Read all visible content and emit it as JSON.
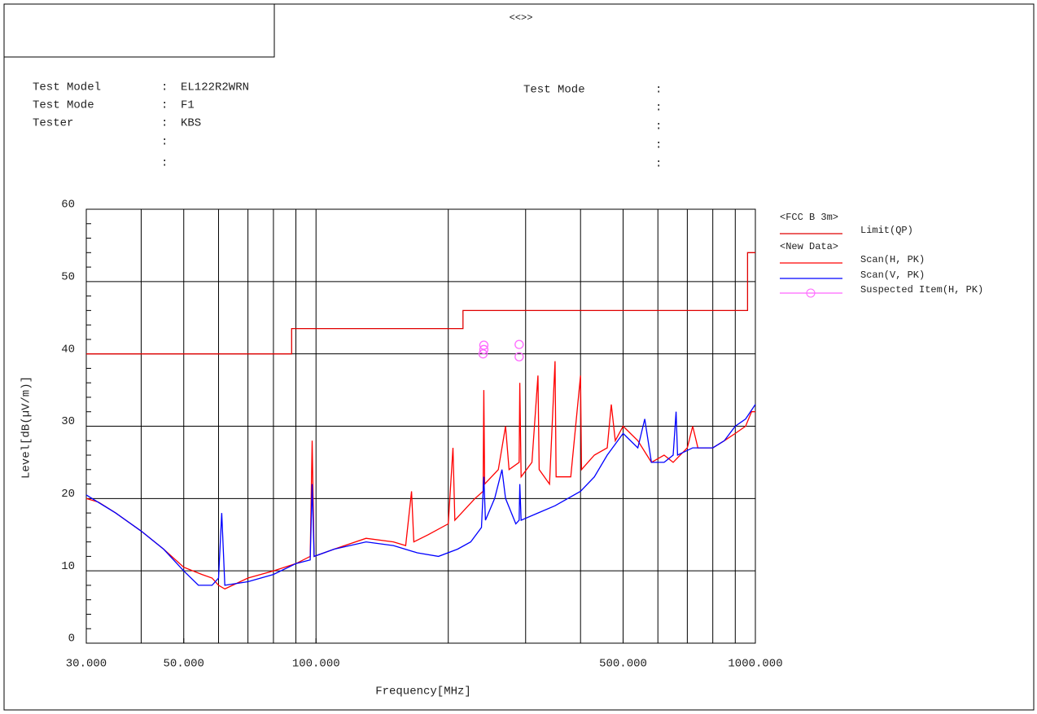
{
  "chart_data": {
    "type": "line",
    "title": "<<>>",
    "info_left": [
      {
        "label": "Test Model",
        "sep": ":",
        "value": "EL122R2WRN"
      },
      {
        "label": "Test Mode",
        "sep": ":",
        "value": "F1"
      },
      {
        "label": "Tester",
        "sep": ":",
        "value": "KBS"
      },
      {
        "sep": ":"
      },
      {
        "sep": ":"
      }
    ],
    "info_right": [
      {
        "label": "Test Mode",
        "sep": ":"
      },
      {
        "sep": ":"
      },
      {
        "sep": ":"
      },
      {
        "sep": ":"
      },
      {
        "sep": ":"
      }
    ],
    "x_label": "Frequency[MHz]",
    "y_label": "Level[dB(µV/m)]",
    "xscale": "log",
    "xlim": [
      30,
      1000
    ],
    "xticks": [
      {
        "value": 30,
        "label": "30.000"
      },
      {
        "value": 50,
        "label": "50.000"
      },
      {
        "value": 100,
        "label": "100.000"
      },
      {
        "value": 500,
        "label": "500.000"
      },
      {
        "value": 1000,
        "label": "1000.000"
      }
    ],
    "xgrid": [
      40,
      50,
      60,
      70,
      80,
      90,
      100,
      200,
      300,
      400,
      500,
      600,
      700,
      800,
      900
    ],
    "ylim": [
      0,
      60
    ],
    "yticks": [
      0,
      10,
      20,
      30,
      40,
      50,
      60
    ],
    "yminor": [
      2,
      4,
      6,
      8,
      12,
      14,
      16,
      18,
      22,
      24,
      26,
      28,
      32,
      34,
      36,
      38,
      42,
      44,
      46,
      48,
      52,
      54,
      56,
      58
    ],
    "grid": true,
    "legend_groups": [
      {
        "title": "<FCC B 3m>"
      },
      {
        "title": "<New Data>"
      }
    ],
    "series": [
      {
        "name": "Limit(QP)",
        "color": "#e00000",
        "style": "line",
        "x": [
          30,
          88,
          88,
          216,
          216,
          960,
          960,
          1000
        ],
        "values": [
          40,
          40,
          43.5,
          43.5,
          46,
          46,
          54,
          54
        ]
      },
      {
        "name": "Scan(H, PK)",
        "color": "#ff0000",
        "style": "line",
        "x": [
          30,
          32,
          35,
          40,
          45,
          50,
          55,
          58,
          60,
          62,
          70,
          80,
          90,
          97,
          98,
          99,
          110,
          130,
          150,
          160,
          165,
          167,
          180,
          200,
          205,
          207,
          230,
          240,
          241,
          242,
          260,
          270,
          275,
          290,
          291,
          293,
          310,
          320,
          322,
          340,
          350,
          352,
          380,
          400,
          402,
          430,
          460,
          470,
          480,
          500,
          540,
          580,
          620,
          650,
          700,
          720,
          740,
          800,
          850,
          900,
          950,
          980,
          1000
        ],
        "values": [
          20,
          19.5,
          18,
          15.5,
          13,
          10.5,
          9.5,
          9,
          8,
          7.5,
          9,
          10,
          11,
          12,
          28,
          12,
          13,
          14.5,
          14,
          13.5,
          21,
          14,
          15,
          16.5,
          27,
          17,
          20,
          21,
          35,
          22,
          24,
          30,
          24,
          25,
          36,
          23,
          25,
          37,
          24,
          22,
          39,
          23,
          23,
          37,
          24,
          26,
          27,
          33,
          28,
          30,
          28,
          25,
          26,
          25,
          27,
          30,
          27,
          27,
          28,
          29,
          30,
          32,
          32
        ]
      },
      {
        "name": "Scan(V, PK)",
        "color": "#0000ff",
        "style": "line",
        "x": [
          30,
          35,
          40,
          45,
          50,
          54,
          58,
          60,
          61,
          62,
          70,
          80,
          90,
          97,
          98,
          99,
          110,
          130,
          150,
          170,
          190,
          210,
          225,
          238,
          241,
          243,
          255,
          265,
          270,
          285,
          290,
          291,
          293,
          320,
          350,
          400,
          430,
          460,
          500,
          540,
          560,
          580,
          620,
          650,
          660,
          665,
          720,
          800,
          850,
          900,
          950,
          1000
        ],
        "values": [
          20.5,
          18,
          15.5,
          13,
          10,
          8,
          8,
          9,
          18,
          8,
          8.5,
          9.5,
          11,
          11.5,
          22,
          12,
          13,
          14,
          13.5,
          12.5,
          12,
          13,
          14,
          16,
          23,
          17,
          20,
          24,
          20,
          16.5,
          17,
          22,
          17,
          18,
          19,
          21,
          23,
          26,
          29,
          27,
          31,
          25,
          25,
          26,
          32,
          26,
          27,
          27,
          28,
          30,
          31,
          33
        ]
      },
      {
        "name": "Suspected Item(H, PK)",
        "color": "#ff66ff",
        "style": "marker",
        "x": [
          240,
          241,
          241,
          290,
          290
        ],
        "values": [
          40,
          40.6,
          41.2,
          41.3,
          39.6
        ]
      }
    ]
  }
}
